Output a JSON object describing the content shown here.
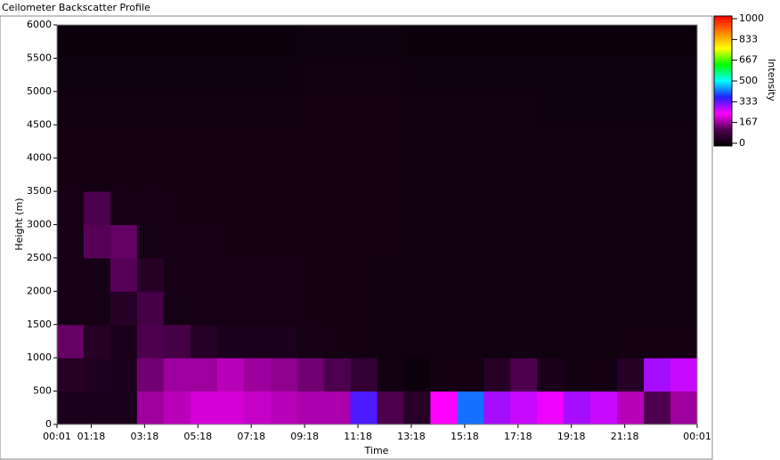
{
  "chart_data": {
    "type": "heatmap",
    "title": "Ceilometer Backscatter Profile",
    "x_label": "Time",
    "y_label": "Height (m)",
    "colorbar_label": "Intensity",
    "xlim": [
      1,
      1441
    ],
    "xticks": [
      {
        "value": 1,
        "label": "00:01"
      },
      {
        "value": 78,
        "label": "01:18"
      },
      {
        "value": 198,
        "label": "03:18"
      },
      {
        "value": 318,
        "label": "05:18"
      },
      {
        "value": 438,
        "label": "07:18"
      },
      {
        "value": 558,
        "label": "09:18"
      },
      {
        "value": 678,
        "label": "11:18"
      },
      {
        "value": 798,
        "label": "13:18"
      },
      {
        "value": 918,
        "label": "15:18"
      },
      {
        "value": 1038,
        "label": "17:18"
      },
      {
        "value": 1158,
        "label": "19:18"
      },
      {
        "value": 1278,
        "label": "21:18"
      },
      {
        "value": 1441,
        "label": "00:01"
      }
    ],
    "ylim": [
      0,
      6000
    ],
    "yticks": [
      0,
      500,
      1000,
      1500,
      2000,
      2500,
      3000,
      3500,
      4000,
      4500,
      5000,
      5500,
      6000
    ],
    "zlim": [
      0,
      1000
    ],
    "zticks": [
      0,
      167,
      333,
      500,
      667,
      833,
      1000
    ],
    "colormap": [
      "#000000",
      "#500050",
      "#ff00ff",
      "#2020ff",
      "#00ffff",
      "#00ff00",
      "#ffff00",
      "#ff8000",
      "#ff0000"
    ],
    "x_bins": [
      1,
      61,
      121,
      181,
      241,
      301,
      361,
      421,
      481,
      541,
      601,
      661,
      721,
      781,
      841,
      901,
      961,
      1021,
      1081,
      1141,
      1201,
      1261,
      1321,
      1381,
      1441
    ],
    "y_bins": [
      0,
      500,
      1000,
      1500,
      2000,
      2500,
      3000,
      3500,
      4000,
      4500,
      5000,
      5500,
      6000
    ],
    "z": [
      [
        40,
        40,
        40,
        180,
        200,
        220,
        220,
        210,
        200,
        190,
        190,
        350,
        120,
        60,
        250,
        420,
        300,
        280,
        260,
        300,
        280,
        200,
        120,
        180
      ],
      [
        60,
        50,
        40,
        150,
        180,
        180,
        200,
        180,
        170,
        150,
        120,
        80,
        30,
        20,
        30,
        30,
        60,
        120,
        40,
        30,
        30,
        60,
        300,
        280
      ],
      [
        140,
        60,
        40,
        120,
        110,
        60,
        40,
        40,
        40,
        35,
        30,
        30,
        25,
        25,
        25,
        25,
        25,
        25,
        25,
        25,
        25,
        30,
        30,
        30
      ],
      [
        35,
        35,
        60,
        110,
        35,
        35,
        35,
        35,
        35,
        30,
        30,
        30,
        25,
        25,
        25,
        25,
        25,
        25,
        25,
        25,
        25,
        25,
        25,
        25
      ],
      [
        35,
        35,
        130,
        60,
        35,
        35,
        35,
        35,
        35,
        30,
        30,
        30,
        25,
        25,
        25,
        25,
        25,
        25,
        25,
        25,
        25,
        25,
        25,
        25
      ],
      [
        35,
        130,
        140,
        35,
        35,
        35,
        30,
        30,
        30,
        30,
        30,
        30,
        30,
        25,
        25,
        25,
        25,
        25,
        25,
        25,
        25,
        25,
        25,
        25
      ],
      [
        35,
        120,
        35,
        35,
        30,
        30,
        30,
        30,
        30,
        30,
        30,
        30,
        30,
        25,
        25,
        25,
        25,
        25,
        25,
        25,
        25,
        25,
        25,
        25
      ],
      [
        30,
        30,
        30,
        30,
        30,
        30,
        30,
        30,
        30,
        30,
        30,
        30,
        30,
        25,
        25,
        25,
        25,
        25,
        25,
        25,
        25,
        25,
        25,
        25
      ],
      [
        28,
        28,
        28,
        28,
        28,
        28,
        28,
        28,
        28,
        30,
        30,
        30,
        30,
        25,
        25,
        25,
        25,
        25,
        25,
        25,
        25,
        25,
        25,
        25
      ],
      [
        25,
        25,
        25,
        25,
        25,
        25,
        25,
        25,
        25,
        28,
        28,
        28,
        28,
        25,
        25,
        25,
        25,
        25,
        22,
        22,
        22,
        22,
        22,
        22
      ],
      [
        22,
        22,
        22,
        22,
        22,
        22,
        22,
        22,
        22,
        25,
        25,
        25,
        25,
        22,
        22,
        22,
        22,
        22,
        22,
        22,
        22,
        22,
        22,
        22
      ],
      [
        20,
        20,
        20,
        20,
        20,
        20,
        20,
        20,
        20,
        22,
        22,
        22,
        22,
        20,
        20,
        20,
        20,
        20,
        20,
        20,
        20,
        20,
        20,
        20
      ]
    ]
  }
}
